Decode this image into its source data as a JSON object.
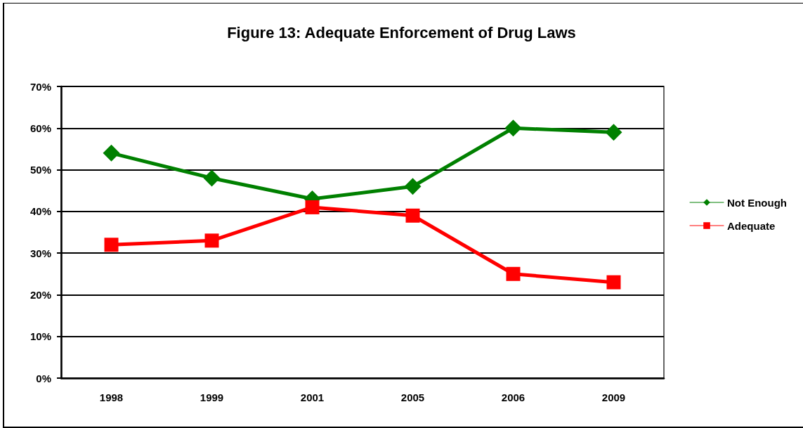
{
  "chart_data": {
    "type": "line",
    "title": "Figure 13: Adequate Enforcement of Drug Laws",
    "categories": [
      "1998",
      "1999",
      "2001",
      "2005",
      "2006",
      "2009"
    ],
    "series": [
      {
        "name": "Not Enough",
        "color": "#008000",
        "marker": "diamond",
        "values": [
          54,
          48,
          43,
          46,
          60,
          59
        ]
      },
      {
        "name": "Adequate",
        "color": "#ff0000",
        "marker": "square",
        "values": [
          32,
          33,
          41,
          39,
          25,
          23
        ]
      }
    ],
    "ylim": [
      0,
      70
    ],
    "yticks": [
      {
        "value": 0,
        "label": "0%"
      },
      {
        "value": 10,
        "label": "10%"
      },
      {
        "value": 20,
        "label": "20%"
      },
      {
        "value": 30,
        "label": "30%"
      },
      {
        "value": 40,
        "label": "40%"
      },
      {
        "value": 50,
        "label": "50%"
      },
      {
        "value": 60,
        "label": "60%"
      },
      {
        "value": 70,
        "label": "70%"
      }
    ],
    "grid": "y",
    "legend": "right",
    "line_style": "solid"
  }
}
